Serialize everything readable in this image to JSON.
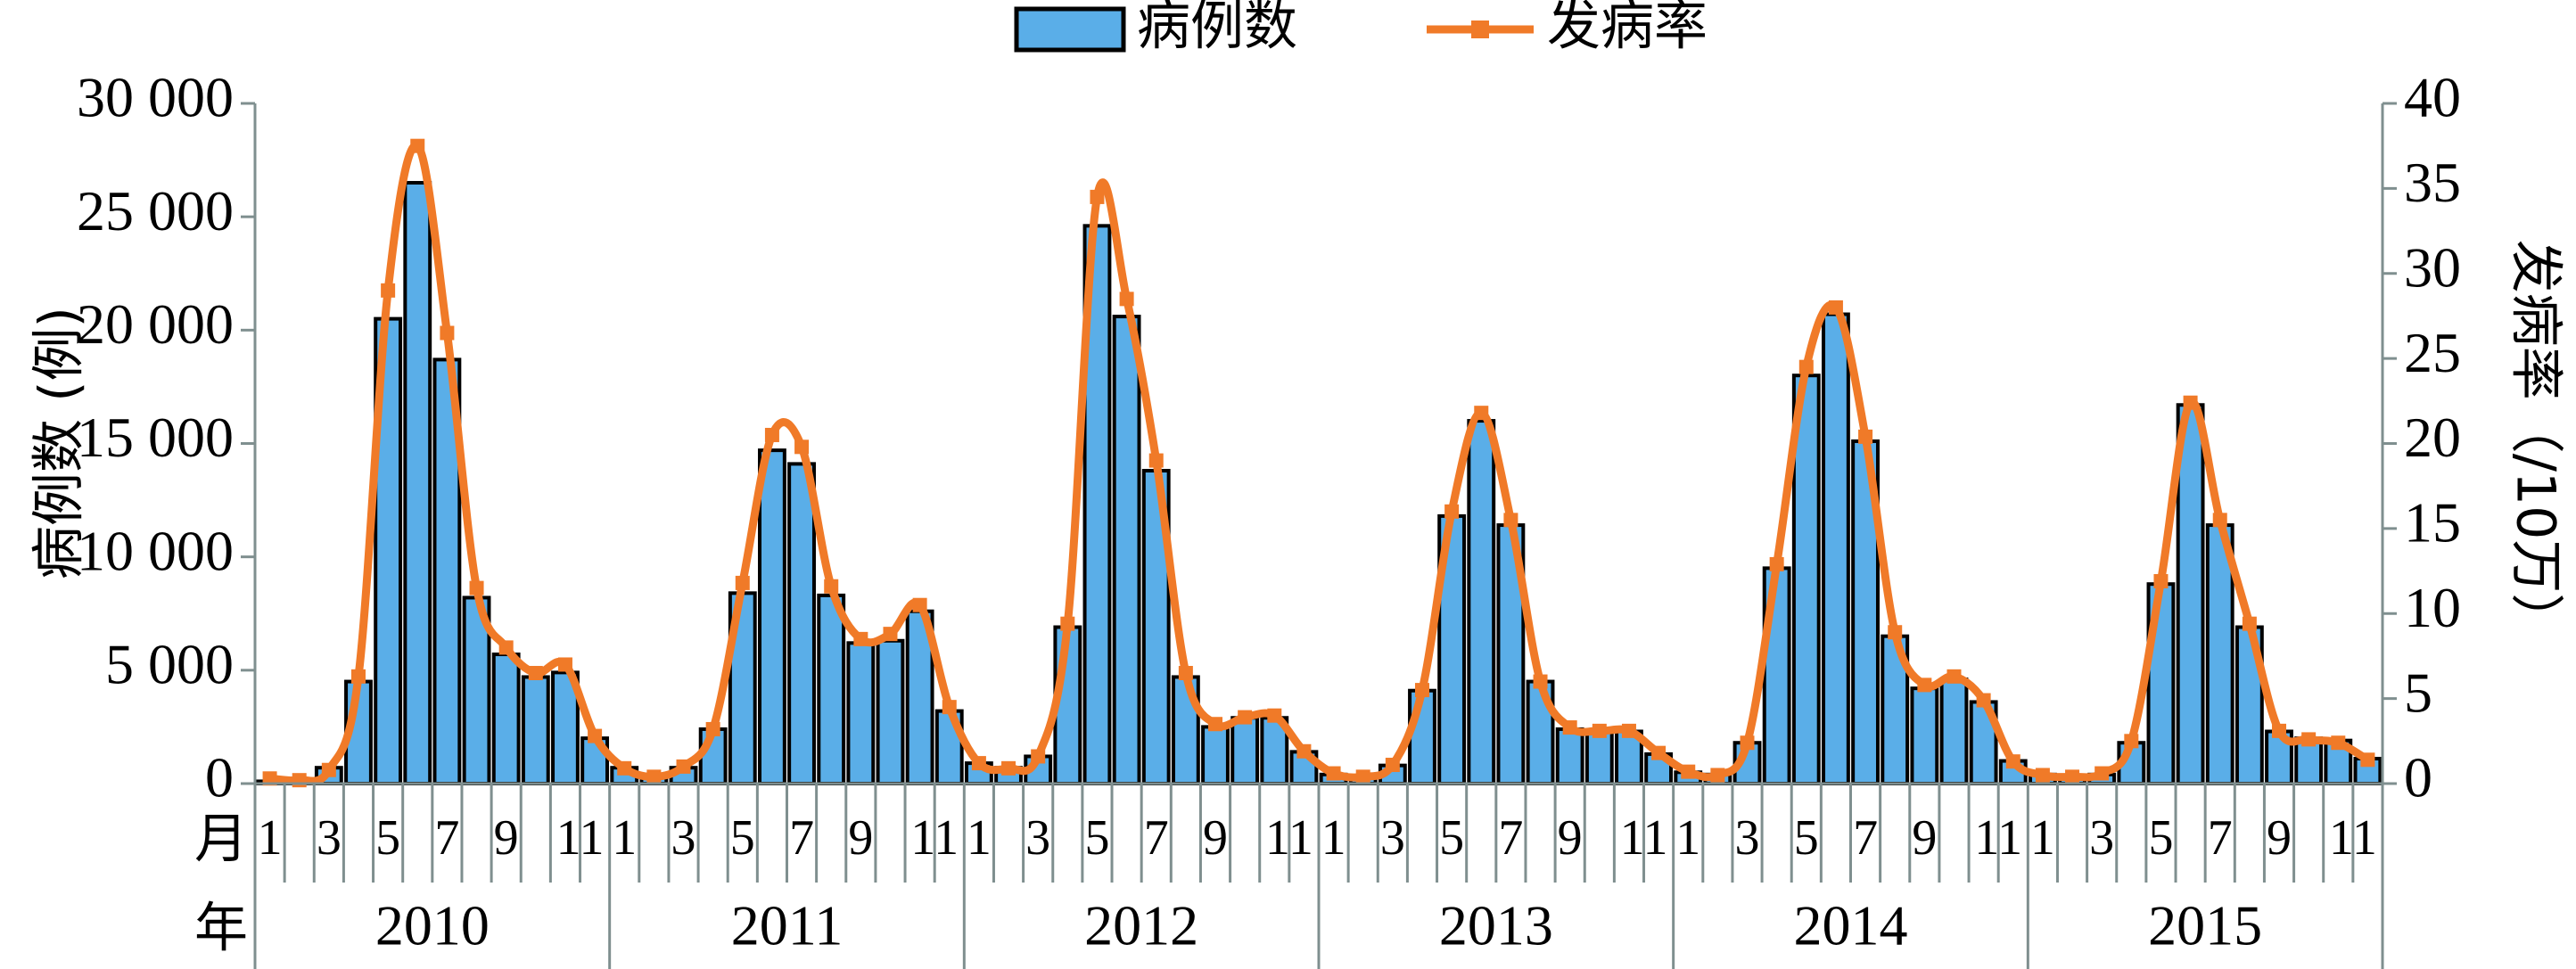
{
  "chart_data": {
    "type": "bar-line",
    "y_label": "病例数 (例)",
    "y2_label": "发病率（/10万）",
    "month_row_label": "月",
    "year_row_label": "年",
    "categories": [
      "1",
      null,
      "3",
      null,
      "5",
      null,
      "7",
      null,
      "9",
      null,
      "11",
      null,
      "1",
      null,
      "3",
      null,
      "5",
      null,
      "7",
      null,
      "9",
      null,
      "11",
      null,
      "1",
      null,
      "3",
      null,
      "5",
      null,
      "7",
      null,
      "9",
      null,
      "11",
      null,
      "1",
      null,
      "3",
      null,
      "5",
      null,
      "7",
      null,
      "9",
      null,
      "11",
      null,
      "1",
      null,
      "3",
      null,
      "5",
      null,
      "7",
      null,
      "9",
      null,
      "11",
      null,
      "1",
      null,
      "3",
      null,
      "5",
      null,
      "7",
      null,
      "9",
      null,
      "11",
      null
    ],
    "years": [
      "2010",
      "2011",
      "2012",
      "2013",
      "2014",
      "2015"
    ],
    "series": [
      {
        "name": "病例数",
        "type": "bar",
        "color": "#5aaee8",
        "values": [
          100,
          200,
          700,
          4500,
          20500,
          26500,
          18700,
          8200,
          5700,
          4700,
          4900,
          2000,
          700,
          300,
          700,
          2400,
          8400,
          14700,
          14100,
          8300,
          6200,
          6300,
          7600,
          3200,
          900,
          700,
          1200,
          6900,
          24600,
          20600,
          13800,
          4700,
          2500,
          2900,
          2900,
          1400,
          400,
          300,
          800,
          4100,
          11800,
          16000,
          11400,
          4500,
          2400,
          2300,
          2300,
          1300,
          500,
          400,
          1800,
          9500,
          18000,
          20700,
          15100,
          6500,
          4200,
          4600,
          3600,
          1000,
          400,
          300,
          400,
          1800,
          8800,
          16700,
          11400,
          6900,
          2300,
          2000,
          1900,
          1100
        ]
      },
      {
        "name": "发病率",
        "type": "line",
        "axis": "y2",
        "color": "#f07a28",
        "values": [
          0.3,
          0.2,
          0.8,
          6.3,
          29,
          37.5,
          26.5,
          11.5,
          8,
          6.5,
          7,
          2.8,
          0.9,
          0.4,
          1.0,
          3.2,
          11.8,
          20.5,
          19.8,
          11.6,
          8.5,
          8.8,
          10.5,
          4.5,
          1.2,
          0.9,
          1.6,
          9.4,
          34.5,
          28.5,
          19,
          6.5,
          3.5,
          3.9,
          4,
          1.9,
          0.6,
          0.4,
          1.1,
          5.5,
          16,
          21.8,
          15.5,
          6,
          3.3,
          3.1,
          3.1,
          1.8,
          0.7,
          0.5,
          2.4,
          12.9,
          24.5,
          28,
          20.4,
          8.9,
          5.8,
          6.3,
          4.9,
          1.3,
          0.5,
          0.4,
          0.6,
          2.5,
          11.9,
          22.4,
          15.5,
          9.4,
          3.1,
          2.6,
          2.4,
          1.4
        ]
      }
    ],
    "ylim": [
      0,
      30000
    ],
    "yticks": [
      0,
      {
        "value": 5000,
        "label": "5 000"
      },
      {
        "value": 10000,
        "label": "10 000"
      },
      {
        "value": 15000,
        "label": "15 000"
      },
      {
        "value": 20000,
        "label": "20 000"
      },
      {
        "value": 25000,
        "label": "25 000"
      },
      {
        "value": 30000,
        "label": "30 000"
      }
    ],
    "y2lim": [
      0,
      40
    ],
    "y2ticks": [
      0,
      5,
      10,
      15,
      20,
      25,
      30,
      35,
      40
    ],
    "legend": "top"
  }
}
